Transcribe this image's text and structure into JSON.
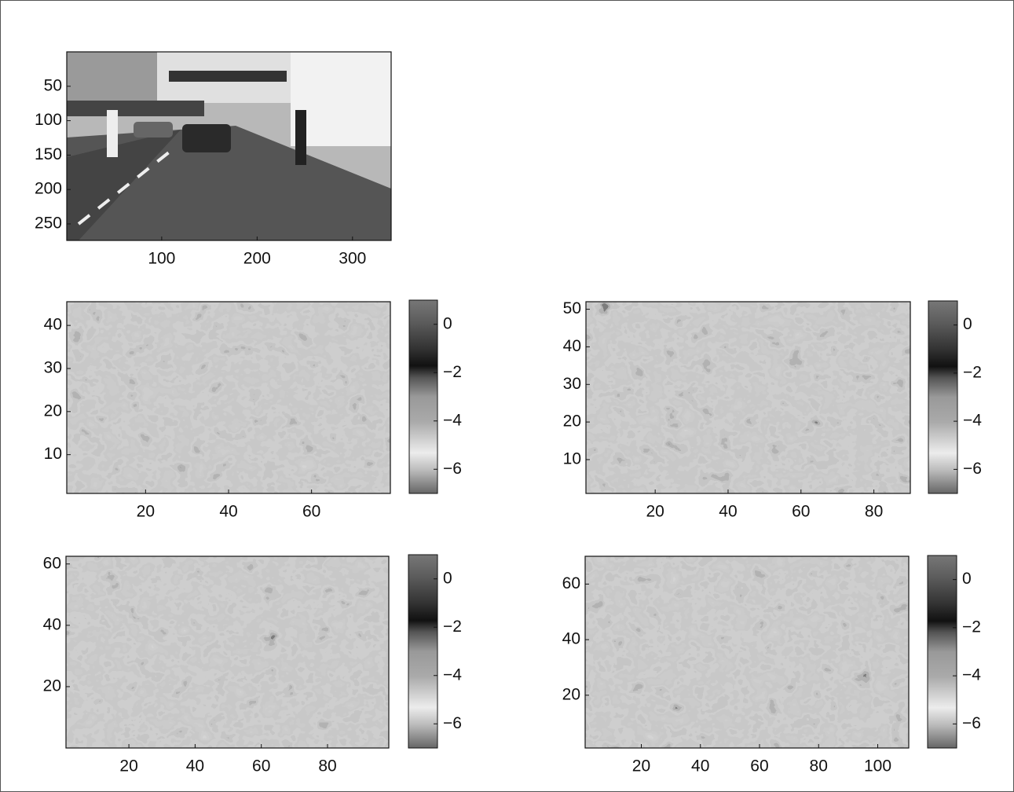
{
  "chart_data": [
    {
      "type": "image",
      "ydir": "reverse",
      "xlim": [
        0.5,
        340.5
      ],
      "ylim": [
        0,
        274
      ],
      "xticks": [
        100,
        200,
        300
      ],
      "yticks": [
        50,
        100,
        150,
        200,
        250
      ]
    },
    {
      "type": "contour",
      "xlim": [
        1,
        79
      ],
      "ylim": [
        1,
        45.5
      ],
      "xticks": [
        20,
        40,
        60
      ],
      "yticks": [
        10,
        20,
        30,
        40
      ],
      "clim": [
        -7,
        1
      ],
      "cticks": [
        0,
        {
          "value": -2,
          "label": "−2"
        },
        {
          "value": -4,
          "label": "−4"
        },
        {
          "value": -6,
          "label": "−6"
        }
      ]
    },
    {
      "type": "contour",
      "xlim": [
        1,
        90
      ],
      "ylim": [
        1,
        52
      ],
      "xticks": [
        20,
        40,
        60,
        80
      ],
      "yticks": [
        10,
        20,
        30,
        40,
        50
      ],
      "clim": [
        -7,
        1
      ],
      "cticks": [
        0,
        {
          "value": -2,
          "label": "−2"
        },
        {
          "value": -4,
          "label": "−4"
        },
        {
          "value": -6,
          "label": "−6"
        }
      ]
    },
    {
      "type": "contour",
      "xlim": [
        1,
        98.5
      ],
      "ylim": [
        0,
        62.5
      ],
      "xticks": [
        20,
        40,
        60,
        80
      ],
      "yticks": [
        20,
        40,
        60
      ],
      "clim": [
        -7,
        1
      ],
      "cticks": [
        0,
        {
          "value": -2,
          "label": "−2"
        },
        {
          "value": -4,
          "label": "−4"
        },
        {
          "value": -6,
          "label": "−6"
        }
      ]
    },
    {
      "type": "contour",
      "xlim": [
        1,
        110.5
      ],
      "ylim": [
        1,
        70
      ],
      "xticks": [
        20,
        40,
        60,
        80,
        100
      ],
      "yticks": [
        20,
        40,
        60
      ],
      "clim": [
        -7,
        1
      ],
      "cticks": [
        0,
        {
          "value": -2,
          "label": "−2"
        },
        {
          "value": -4,
          "label": "−4"
        },
        {
          "value": -6,
          "label": "−6"
        }
      ]
    }
  ]
}
